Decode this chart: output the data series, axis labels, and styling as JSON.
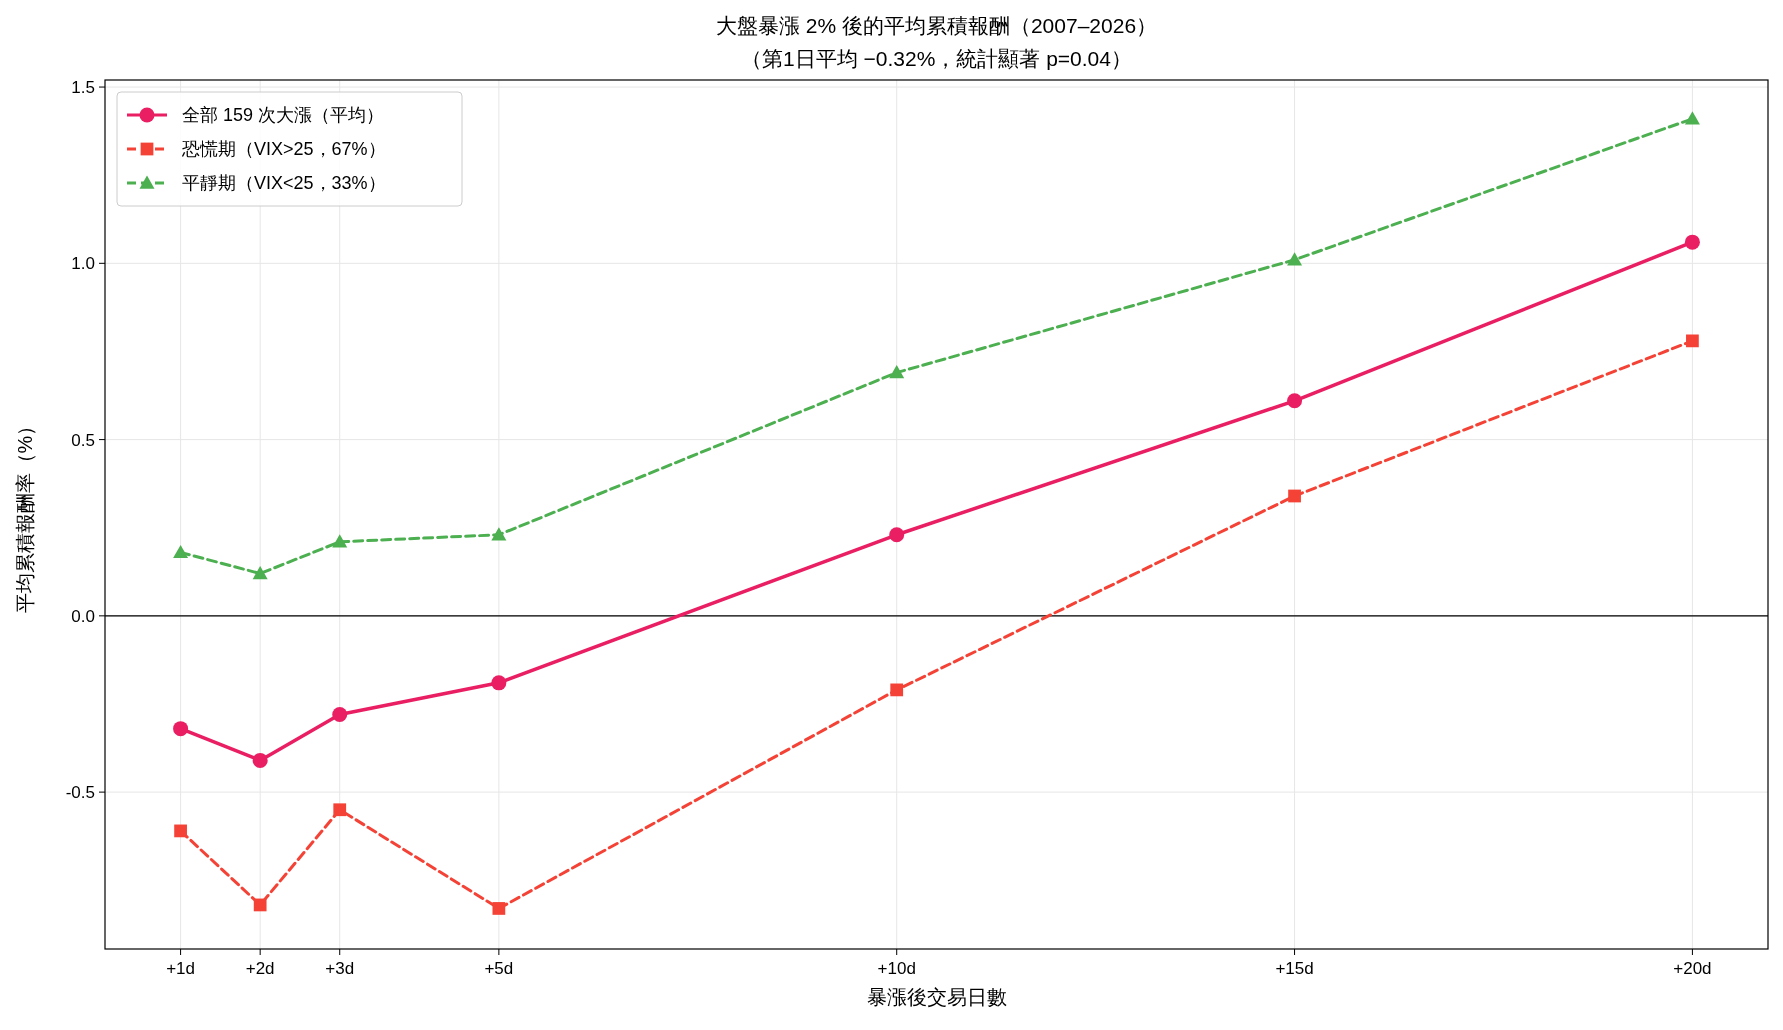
{
  "chart_data": {
    "type": "line",
    "title": "大盤暴漲 2% 後的平均累積報酬（2007–2026）",
    "subtitle": "（第1日平均 −0.32%，統計顯著 p=0.04）",
    "xlabel": "暴漲後交易日數",
    "ylabel": "平均累積報酬率（%）",
    "x": [
      1,
      2,
      3,
      5,
      10,
      15,
      20
    ],
    "series": [
      {
        "name": "全部 159 次大漲（平均）",
        "color": "#e91e63",
        "marker": "circle",
        "line_style": "solid",
        "values": [
          -0.32,
          -0.41,
          -0.28,
          -0.19,
          0.23,
          0.61,
          1.06
        ]
      },
      {
        "name": "恐慌期（VIX>25，67%）",
        "color": "#f44336",
        "marker": "square",
        "line_style": "dashed",
        "values": [
          -0.61,
          -0.82,
          -0.55,
          -0.83,
          -0.21,
          0.34,
          0.78
        ]
      },
      {
        "name": "平靜期（VIX<25，33%）",
        "color": "#4caf50",
        "marker": "triangle",
        "line_style": "dashed",
        "values": [
          0.18,
          0.12,
          0.21,
          0.23,
          0.69,
          1.01,
          1.41
        ]
      }
    ],
    "xlim": [
      0.05,
      20.95
    ],
    "ylim": [
      -0.945,
      1.52
    ],
    "xticks": [
      {
        "value": 1,
        "label": "+1d"
      },
      {
        "value": 2,
        "label": "+2d"
      },
      {
        "value": 3,
        "label": "+3d"
      },
      {
        "value": 5,
        "label": "+5d"
      },
      {
        "value": 10,
        "label": "+10d"
      },
      {
        "value": 15,
        "label": "+15d"
      },
      {
        "value": 20,
        "label": "+20d"
      }
    ],
    "yticks": [
      -0.5,
      {
        "value": 0,
        "label": "0.0"
      },
      0.5,
      {
        "value": 1,
        "label": "1.0"
      },
      1.5
    ],
    "ref_lines": [
      {
        "axis": "y",
        "value": 0,
        "color": "#000000"
      }
    ],
    "grid": true,
    "legend": "top left"
  }
}
